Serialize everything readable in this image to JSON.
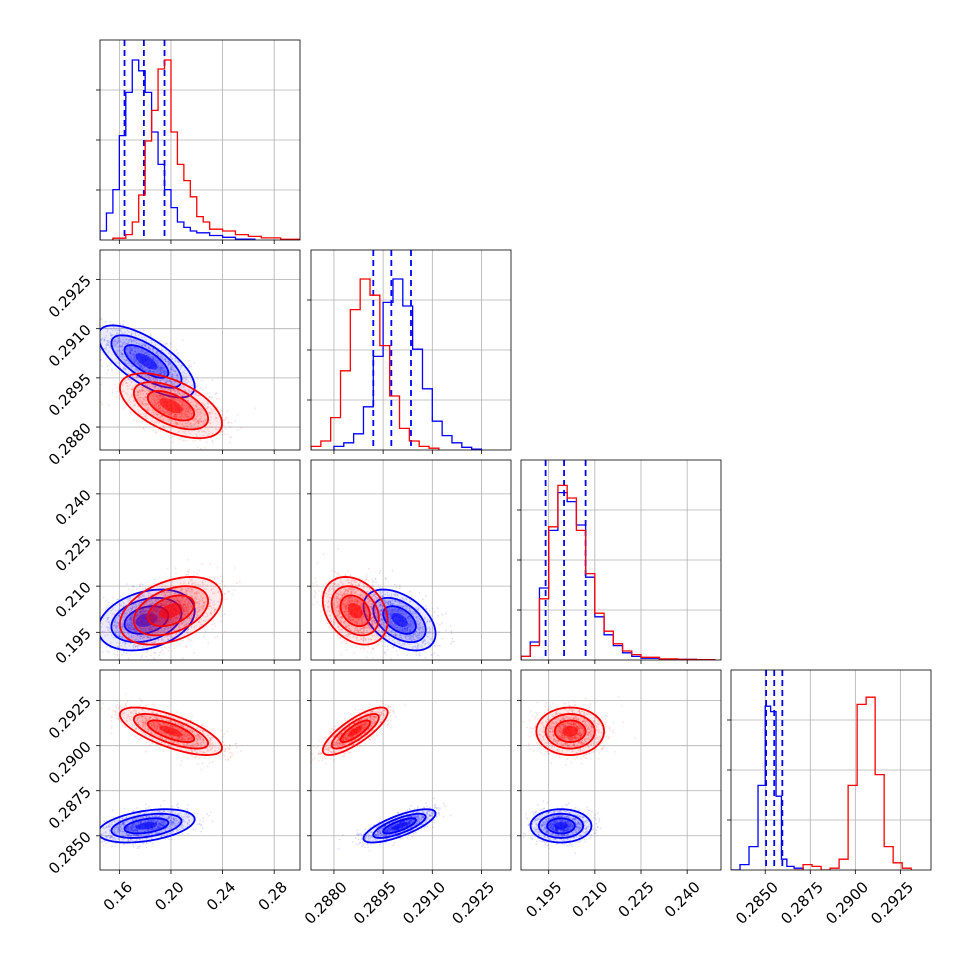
{
  "colors": {
    "series_a": "#0000ff",
    "series_b": "#ff0000",
    "grid": "#b0b0b0"
  },
  "chart_data": {
    "type": "corner",
    "grid": true,
    "parameters": [
      {
        "range": [
          0.145,
          0.3
        ],
        "ticks": [
          0.16,
          0.2,
          0.24,
          0.28
        ],
        "tick_labels": [
          "0.16",
          "0.20",
          "0.24",
          "0.28"
        ]
      },
      {
        "range": [
          0.2873,
          0.2934
        ],
        "ticks": [
          0.288,
          0.2895,
          0.291,
          0.2925
        ],
        "tick_labels": [
          "0.2880",
          "0.2895",
          "0.2910",
          "0.2925"
        ]
      },
      {
        "range": [
          0.186,
          0.251
        ],
        "ticks": [
          0.195,
          0.21,
          0.225,
          0.24
        ],
        "tick_labels": [
          "0.195",
          "0.210",
          "0.225",
          "0.240"
        ]
      },
      {
        "range": [
          0.2831,
          0.2942
        ],
        "ticks": [
          0.285,
          0.2875,
          0.29,
          0.2925
        ],
        "tick_labels": [
          "0.2850",
          "0.2875",
          "0.2900",
          "0.2925"
        ]
      }
    ],
    "series": [
      {
        "color": "#0000ff",
        "quantiles": [
          [
            0.164,
            0.179,
            0.195
          ],
          [
            0.2892,
            0.28975,
            0.29035
          ],
          [
            0.194,
            0.2,
            0.207
          ],
          [
            0.28505,
            0.2855,
            0.28595
          ]
        ],
        "means": [
          0.181,
          0.29,
          0.199,
          0.28555
        ],
        "stds": [
          0.017,
          0.0005,
          0.0045,
          0.00042
        ],
        "corr": [
          [
            1,
            -0.7,
            0.3,
            0.4
          ],
          [
            -0.7,
            1,
            -0.45,
            0.75
          ],
          [
            0.3,
            -0.45,
            1,
            0.0
          ],
          [
            0.4,
            0.75,
            0.0,
            1
          ]
        ],
        "histograms": [
          {
            "edges": [
              0.145,
              0.15,
              0.155,
              0.16,
              0.165,
              0.17,
              0.175,
              0.18,
              0.185,
              0.19,
              0.195,
              0.2,
              0.205,
              0.21,
              0.215,
              0.22,
              0.23,
              0.24,
              0.25,
              0.265
            ],
            "counts": [
              0.05,
              0.15,
              0.28,
              0.58,
              0.82,
              1.0,
              0.94,
              0.82,
              0.6,
              0.42,
              0.28,
              0.18,
              0.1,
              0.07,
              0.05,
              0.04,
              0.025,
              0.015,
              0.005
            ]
          },
          {
            "edges": [
              0.288,
              0.2883,
              0.2886,
              0.2889,
              0.2892,
              0.2895,
              0.2898,
              0.2901,
              0.2904,
              0.2907,
              0.291,
              0.2913,
              0.2916,
              0.2919,
              0.2922,
              0.2925
            ],
            "counts": [
              0.02,
              0.04,
              0.09,
              0.24,
              0.52,
              0.82,
              0.95,
              0.8,
              0.56,
              0.34,
              0.16,
              0.08,
              0.04,
              0.015,
              0.005
            ]
          },
          {
            "edges": [
              0.186,
              0.189,
              0.192,
              0.195,
              0.198,
              0.201,
              0.204,
              0.207,
              0.21,
              0.213,
              0.216,
              0.219,
              0.222,
              0.225,
              0.231,
              0.237,
              0.243,
              0.249
            ],
            "counts": [
              0.02,
              0.1,
              0.4,
              0.72,
              0.93,
              0.88,
              0.75,
              0.46,
              0.24,
              0.14,
              0.08,
              0.04,
              0.02,
              0.01,
              0.005,
              0.003,
              0.002
            ]
          },
          {
            "edges": [
              0.2831,
              0.2836,
              0.2841,
              0.2846,
              0.285,
              0.2853,
              0.2856,
              0.2859,
              0.2862,
              0.2866,
              0.2871
            ],
            "counts": [
              0.0,
              0.03,
              0.13,
              0.47,
              0.91,
              0.88,
              0.41,
              0.06,
              0.02,
              0.01
            ]
          }
        ]
      },
      {
        "color": "#ff0000",
        "quantiles": [
          null,
          null,
          null,
          null
        ],
        "means": [
          0.2,
          0.28865,
          0.202,
          0.2908
        ],
        "stds": [
          0.018,
          0.00045,
          0.005,
          0.0006
        ],
        "corr": [
          [
            1,
            -0.55,
            0.4,
            -0.7
          ],
          [
            -0.55,
            1,
            -0.3,
            0.8
          ],
          [
            0.4,
            -0.3,
            1,
            0.0
          ],
          [
            -0.7,
            0.8,
            0.0,
            1
          ]
        ],
        "histograms": [
          {
            "edges": [
              0.155,
              0.165,
              0.17,
              0.175,
              0.18,
              0.185,
              0.19,
              0.195,
              0.2,
              0.205,
              0.21,
              0.215,
              0.22,
              0.225,
              0.23,
              0.24,
              0.25,
              0.26,
              0.27,
              0.285,
              0.3
            ],
            "counts": [
              0.01,
              0.03,
              0.1,
              0.25,
              0.55,
              0.72,
              0.95,
              1.0,
              0.6,
              0.42,
              0.33,
              0.24,
              0.13,
              0.1,
              0.06,
              0.05,
              0.03,
              0.02,
              0.012,
              0.004
            ]
          },
          {
            "edges": [
              0.2873,
              0.2876,
              0.2879,
              0.2882,
              0.2885,
              0.2888,
              0.2891,
              0.2894,
              0.2897,
              0.29,
              0.2903,
              0.2906,
              0.2909,
              0.2912
            ],
            "counts": [
              0.02,
              0.05,
              0.18,
              0.44,
              0.78,
              0.95,
              0.86,
              0.58,
              0.3,
              0.12,
              0.05,
              0.02,
              0.01
            ]
          },
          {
            "edges": [
              0.186,
              0.189,
              0.192,
              0.195,
              0.198,
              0.201,
              0.204,
              0.207,
              0.21,
              0.213,
              0.216,
              0.219,
              0.222,
              0.225,
              0.231,
              0.237,
              0.243,
              0.249
            ],
            "counts": [
              0.02,
              0.08,
              0.34,
              0.74,
              0.97,
              0.9,
              0.72,
              0.48,
              0.26,
              0.16,
              0.09,
              0.05,
              0.03,
              0.015,
              0.006,
              0.003,
              0.002
            ]
          },
          {
            "edges": [
              0.2866,
              0.2871,
              0.2876,
              0.2881,
              0.2886,
              0.2891,
              0.2896,
              0.2901,
              0.2906,
              0.2911,
              0.2916,
              0.2921,
              0.2926,
              0.2931
            ],
            "counts": [
              0.0,
              0.03,
              0.02,
              0.0,
              0.01,
              0.06,
              0.47,
              0.92,
              0.96,
              0.53,
              0.13,
              0.04,
              0.01
            ]
          }
        ]
      }
    ]
  }
}
